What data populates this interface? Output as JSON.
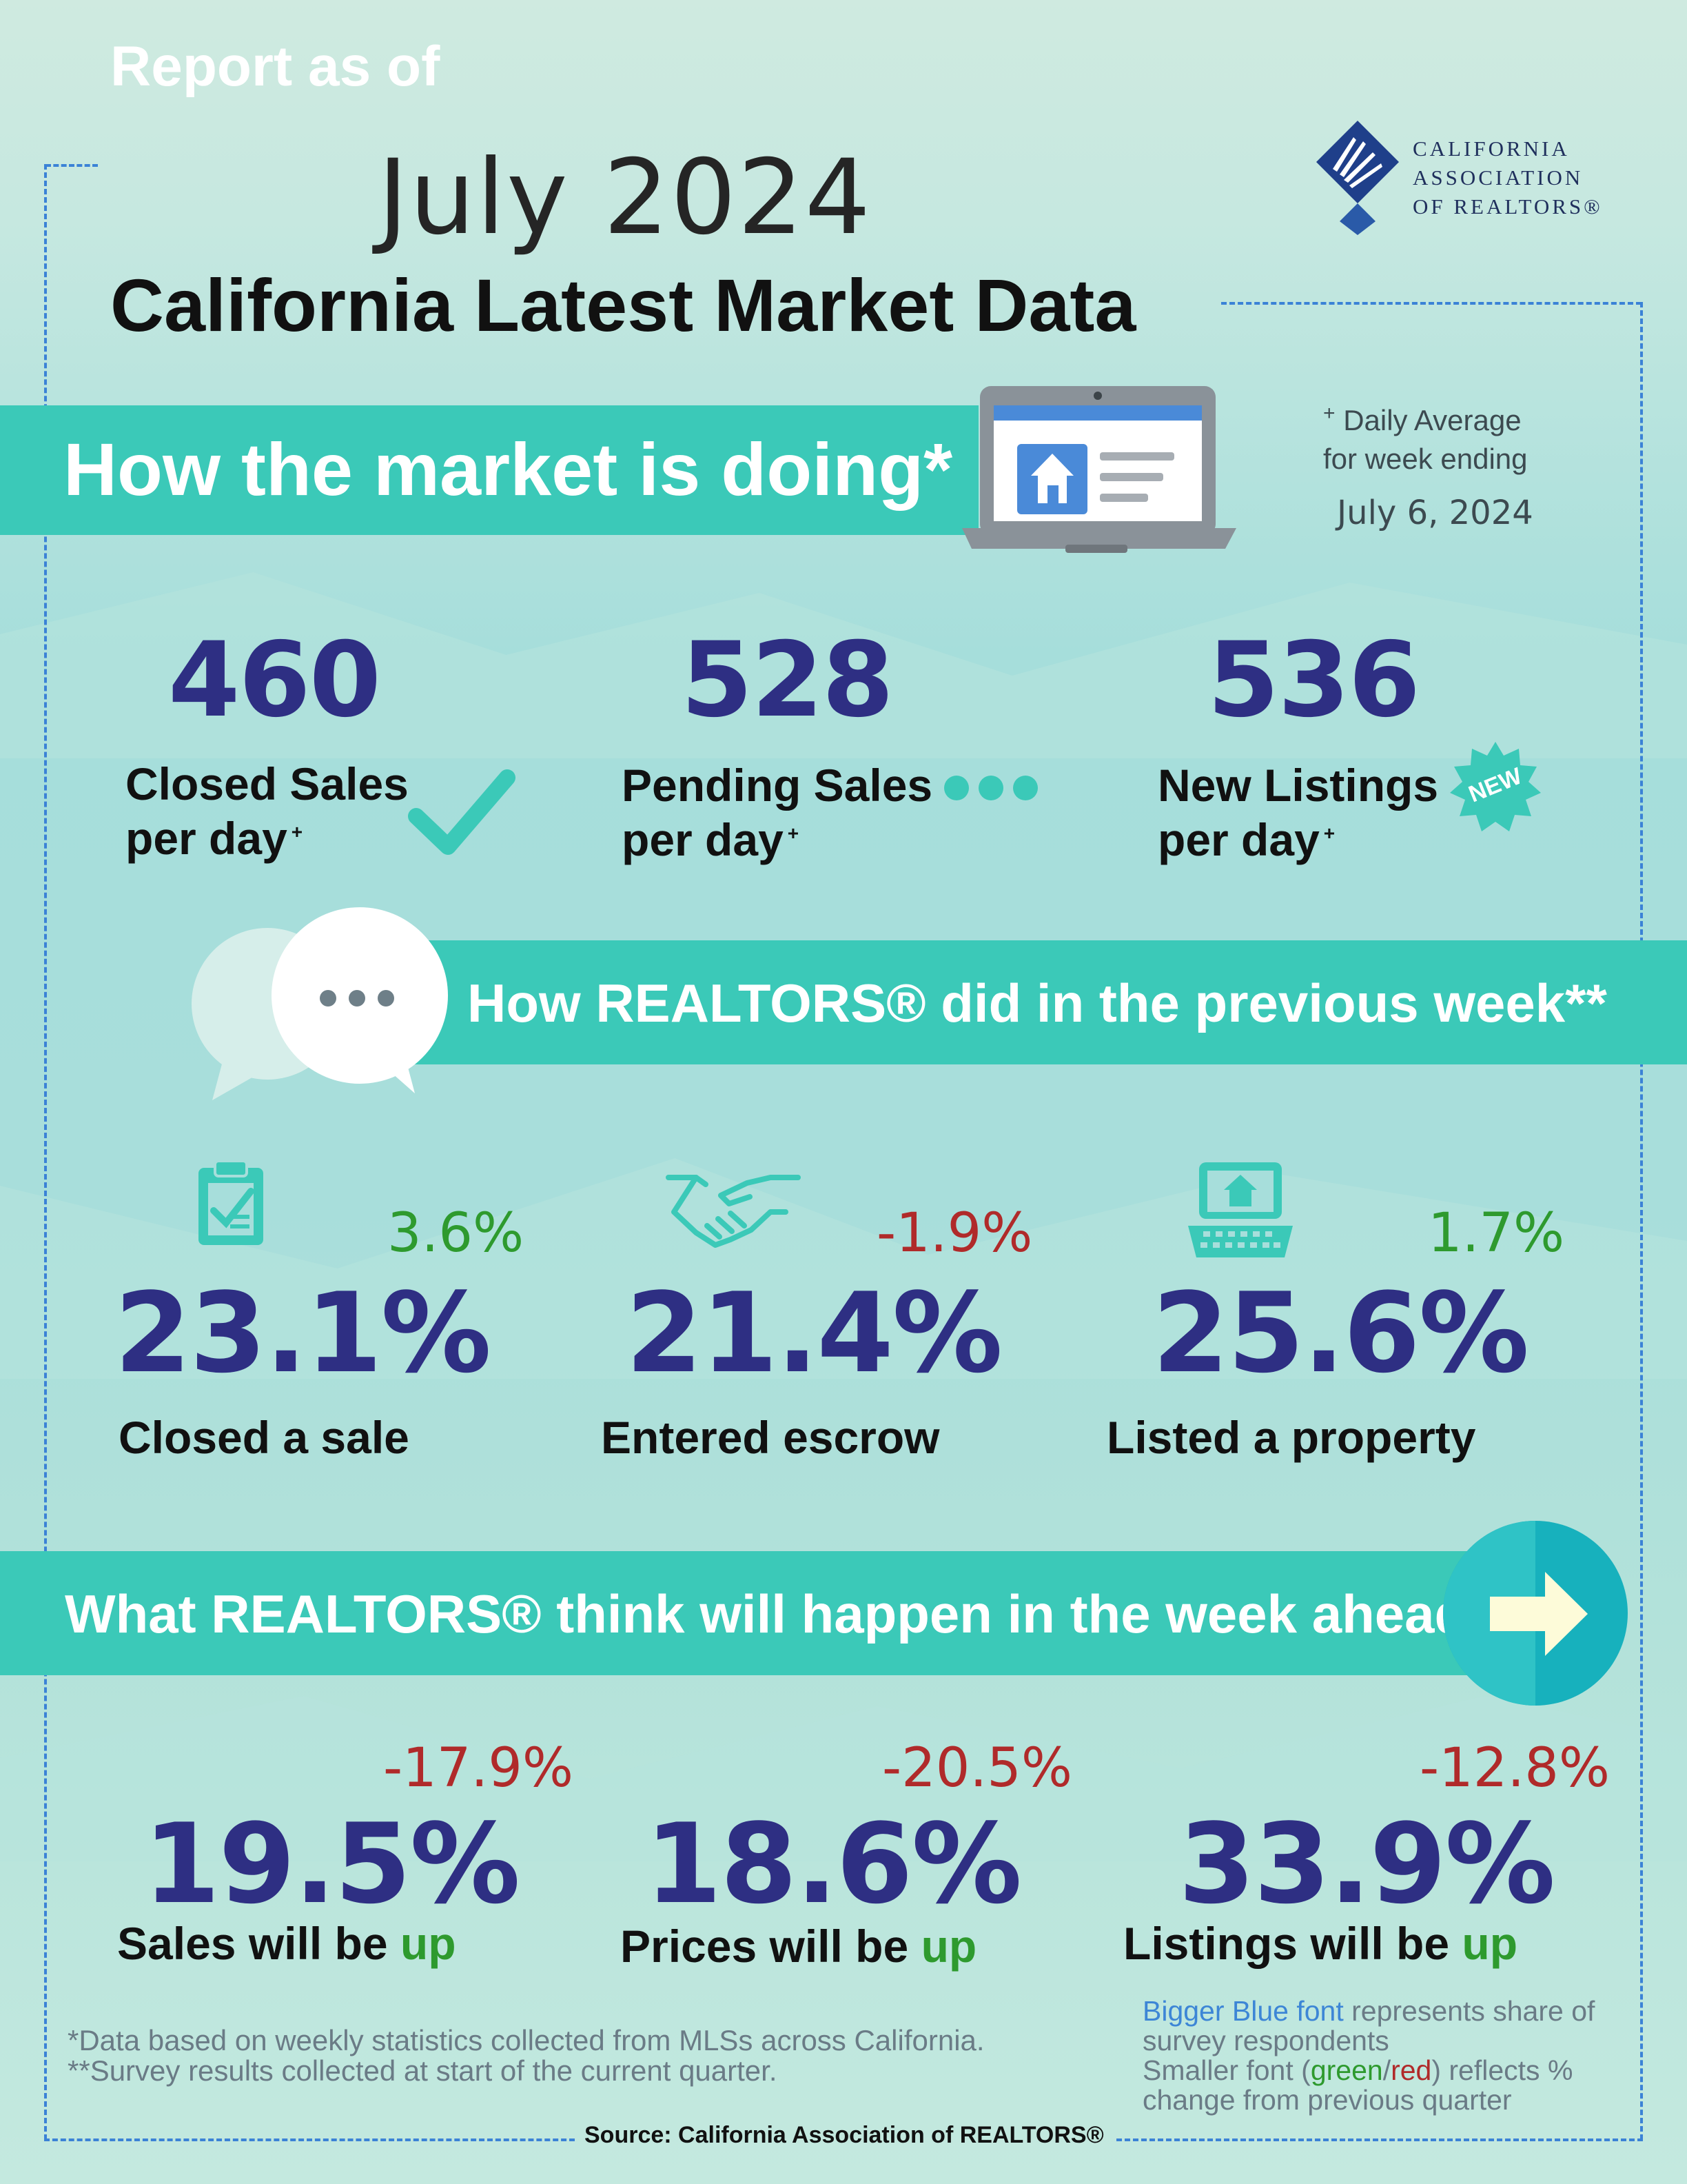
{
  "header": {
    "report_as_of": "Report as of",
    "month": "July 2024",
    "title": "California Latest Market Data"
  },
  "logo": {
    "line1": "CALIFORNIA",
    "line2": "ASSOCIATION",
    "line3": "OF REALTORS®"
  },
  "market": {
    "section_title": "How the market is doing*",
    "note_line1": "Daily Average",
    "note_line2": "for week ending",
    "note_date": "July 6, 2024",
    "stats": [
      {
        "value": "460",
        "label_line1": "Closed Sales",
        "label_line2": "per day",
        "icon": "checkmark-icon"
      },
      {
        "value": "528",
        "label_line1": "Pending Sales",
        "label_line2": "per day",
        "icon": "three-dots-icon"
      },
      {
        "value": "536",
        "label_line1": "New Listings",
        "label_line2": "per day",
        "icon": "new-badge-icon",
        "badge": "NEW"
      }
    ]
  },
  "previous_week": {
    "section_title": "How REALTORS® did in the previous week**",
    "stats": [
      {
        "value": "23.1%",
        "change": "3.6%",
        "change_dir": "up",
        "label": "Closed a sale",
        "icon": "clipboard-icon"
      },
      {
        "value": "21.4%",
        "change": "-1.9%",
        "change_dir": "down",
        "label": "Entered escrow",
        "icon": "handshake-icon"
      },
      {
        "value": "25.6%",
        "change": "1.7%",
        "change_dir": "up",
        "label": "Listed a property",
        "icon": "laptop-house-icon"
      }
    ]
  },
  "week_ahead": {
    "section_title": "What REALTORS® think will happen in the week ahead**",
    "stats": [
      {
        "value": "19.5%",
        "change": "-17.9%",
        "label_prefix": "Sales will be",
        "label_word": "up"
      },
      {
        "value": "18.6%",
        "change": "-20.5%",
        "label_prefix": "Prices will be",
        "label_word": "up"
      },
      {
        "value": "33.9%",
        "change": "-12.8%",
        "label_prefix": "Listings will be",
        "label_word": "up"
      }
    ]
  },
  "footnotes": {
    "line1": "*Data based on weekly statistics collected from MLSs across California.",
    "line2": "**Survey results collected at start of the current quarter."
  },
  "legend": {
    "blue_part": "Bigger Blue font",
    "line1_rest": " represents share of",
    "line2": "survey respondents",
    "line3_prefix": "Smaller font (",
    "green": "green",
    "slash": "/",
    "red": "red",
    "line3_suffix": ") reflects %",
    "line4": "change from previous quarter"
  },
  "source": "Source: California Association of REALTORS®",
  "colors": {
    "band": "#3bc9b8",
    "number_blue": "#2e2f83",
    "green": "#2e9a2e",
    "red": "#b02a2a",
    "frame": "#3b82d6"
  }
}
